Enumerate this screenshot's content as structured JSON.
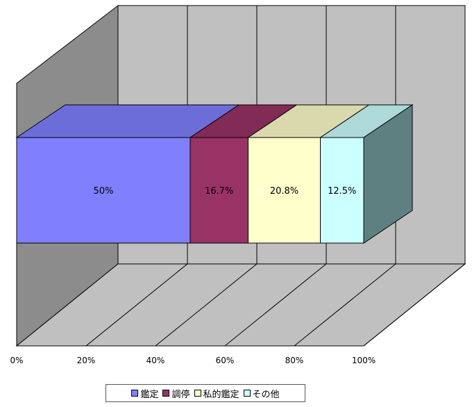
{
  "chart_data": {
    "type": "bar",
    "orientation": "horizontal",
    "stacked": "100%",
    "three_d": true,
    "categories": [
      ""
    ],
    "series": [
      {
        "name": "鑑定",
        "values": [
          50
        ],
        "label": "50%",
        "color": "#8080ff"
      },
      {
        "name": "調停",
        "values": [
          16.7
        ],
        "label": "16.7%",
        "color": "#993366"
      },
      {
        "name": "私的鑑定",
        "values": [
          20.8
        ],
        "label": "20.8%",
        "color": "#ffffcc"
      },
      {
        "name": "その他",
        "values": [
          12.5
        ],
        "label": "12.5%",
        "color": "#ccffff"
      }
    ],
    "xlim": [
      0,
      100
    ],
    "x_ticks": [
      "0%",
      "20%",
      "40%",
      "60%",
      "80%",
      "100%"
    ],
    "grid": true,
    "legend_position": "bottom"
  }
}
